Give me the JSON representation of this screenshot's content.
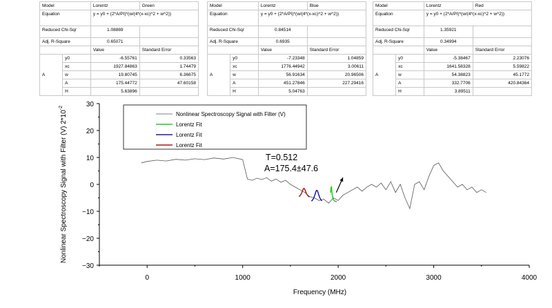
{
  "fit_tables": [
    {
      "model_label": "Model",
      "model": "Lorentz",
      "color_name": "Green",
      "equation_label": "Equation",
      "equation": "y = y0 + (2*A/PI)*(w/(4*(x-xc)^2 + w^2))",
      "chisqr_label": "Reduced Chi-Sqr",
      "chisqr": "1.08869",
      "r2_label": "Adj. R-Square",
      "r2": "0.65071",
      "value_header": "Value",
      "error_header": "Standard Error",
      "group_label": "A",
      "params": [
        {
          "name": "y0",
          "value": "-6.55761",
          "error": "0.33563"
        },
        {
          "name": "xc",
          "value": "1927.84863",
          "error": "1.74479"
        },
        {
          "name": "w",
          "value": "19.80745",
          "error": "6.36675"
        },
        {
          "name": "A",
          "value": "175.44772",
          "error": "47.60158"
        },
        {
          "name": "H",
          "value": "5.63896",
          "error": ""
        }
      ]
    },
    {
      "model_label": "Model",
      "model": "Lorentz",
      "color_name": "Blue",
      "equation_label": "Equation",
      "equation": "y = y0 + (2*A/PI)*(w/(4*(x-xc)^2 + w^2))",
      "chisqr_label": "Reduced Chi-Sqr",
      "chisqr": "0.84514",
      "r2_label": "Adj. R-Square",
      "r2": "0.6935",
      "value_header": "Value",
      "error_header": "Standard Error",
      "group_label": "A",
      "params": [
        {
          "name": "y0",
          "value": "-7.23348",
          "error": "1.04859"
        },
        {
          "name": "xc",
          "value": "1776.44942",
          "error": "3.00611"
        },
        {
          "name": "w",
          "value": "56.91634",
          "error": "20.96506"
        },
        {
          "name": "A",
          "value": "451.27846",
          "error": "227.29416"
        },
        {
          "name": "H",
          "value": "5.04763",
          "error": ""
        }
      ]
    },
    {
      "model_label": "Model",
      "model": "Lorentz",
      "color_name": "Red",
      "equation_label": "Equation",
      "equation": "y = y0 + (2*A/PI)*(w/(4*(x-xc)^2 + w^2))",
      "chisqr_label": "Reduced Chi-Sqr",
      "chisqr": "1.35921",
      "r2_label": "Adj. R-Square",
      "r2": "0.34994",
      "value_header": "Value",
      "error_header": "Standard Error",
      "group_label": "A",
      "params": [
        {
          "name": "y0",
          "value": "-5.38467",
          "error": "2.23076"
        },
        {
          "name": "xc",
          "value": "1641.58328",
          "error": "5.59822"
        },
        {
          "name": "w",
          "value": "54.38823",
          "error": "45.1772"
        },
        {
          "name": "A",
          "value": "332.7706",
          "error": "420.84364"
        },
        {
          "name": "H",
          "value": "3.89511",
          "error": ""
        }
      ]
    }
  ],
  "chart_data": {
    "type": "line",
    "xlabel": "Frequency (MHz)",
    "ylabel": "Nonlinear Spectroscopy Signal with Filter (V) 2*10^-2",
    "xlim": [
      -500,
      4000
    ],
    "ylim": [
      -30,
      30
    ],
    "xticks": [
      0,
      1000,
      2000,
      3000,
      4000
    ],
    "yticks": [
      30,
      20,
      10,
      0,
      -10,
      -20,
      -30
    ],
    "grid": false,
    "legend_position": "top-center",
    "annotation": {
      "line1": "T=0.512",
      "line2": "A=175.4±47.6",
      "x": 1980,
      "y": -3,
      "arrow_to": [
        2050,
        2.5
      ]
    },
    "series": [
      {
        "name": "Nonlinear Spectroscopy Signal with Filter (V)",
        "color": "#555555",
        "x": [
          -60,
          0,
          100,
          200,
          300,
          400,
          500,
          600,
          700,
          800,
          900,
          1000,
          1050,
          1100,
          1150,
          1200,
          1250,
          1300,
          1350,
          1400,
          1450,
          1500,
          1550,
          1600,
          1650,
          1700,
          1750,
          1800,
          1850,
          1900,
          1950,
          2000,
          2050,
          2100,
          2150,
          2200,
          2250,
          2300,
          2350,
          2400,
          2450,
          2500,
          2550,
          2600,
          2650,
          2700,
          2750,
          2800,
          2850,
          2900,
          2950,
          3000,
          3050,
          3100,
          3150,
          3200,
          3250,
          3300,
          3350,
          3400,
          3450,
          3500,
          3550
        ],
        "y": [
          8,
          8.5,
          9,
          8.7,
          9.3,
          9,
          9.5,
          9.2,
          9.8,
          9.4,
          10,
          9.2,
          2,
          1.5,
          2.3,
          1.8,
          2.5,
          1.2,
          2,
          0.8,
          1.5,
          0,
          -1,
          -2,
          -3,
          -4.5,
          -5,
          -6,
          -5.5,
          -7,
          -5,
          -6,
          -4,
          -3,
          -2,
          -1,
          -2.5,
          -1,
          0,
          -1,
          0.5,
          -2,
          1,
          -3,
          0,
          -5,
          -9,
          0,
          1,
          -2,
          3,
          7,
          8,
          5,
          3,
          1,
          -1,
          0,
          -2,
          -1,
          -3,
          -2,
          -3
        ]
      },
      {
        "name": "Lorentz Fit",
        "color": "#22cc22",
        "x0": 1920,
        "x1": 1985,
        "xc": 1927.84863,
        "y0": -6.55761,
        "w": 19.80745,
        "A": 175.44772
      },
      {
        "name": "Lorentz Fit",
        "color": "#1a1aaa",
        "x0": 1720,
        "x1": 1830,
        "xc": 1776.44942,
        "y0": -7.23348,
        "w": 56.91634,
        "A": 451.27846
      },
      {
        "name": "Lorentz Fit",
        "color": "#aa1a1a",
        "x0": 1590,
        "x1": 1700,
        "xc": 1641.58328,
        "y0": -5.38467,
        "w": 54.38823,
        "A": 332.7706
      }
    ]
  }
}
